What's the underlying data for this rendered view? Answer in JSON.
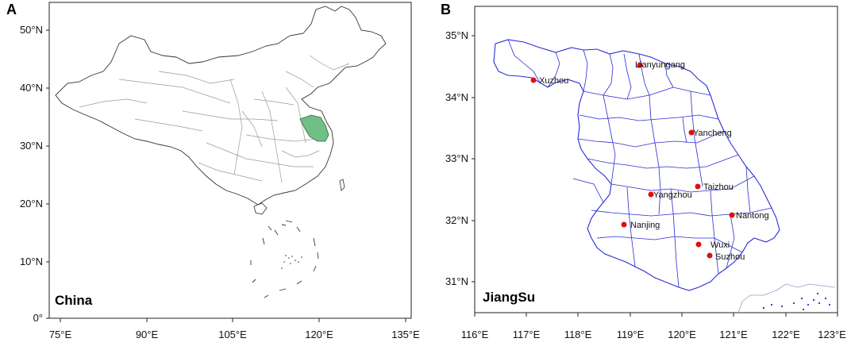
{
  "panel_a": {
    "letter": "A",
    "region_name": "China",
    "lat_labels": [
      "50°N",
      "40°N",
      "30°N",
      "20°N",
      "10°N",
      "0°"
    ],
    "lon_labels": [
      "75°E",
      "90°E",
      "105°E",
      "120°E",
      "135°E"
    ],
    "highlight_color": "#6fbf86"
  },
  "panel_b": {
    "letter": "B",
    "region_name": "JiangSu",
    "lat_labels": [
      "35°N",
      "34°N",
      "33°N",
      "32°N",
      "31°N"
    ],
    "lon_labels": [
      "116°E",
      "117°E",
      "118°E",
      "119°E",
      "120°E",
      "121°E",
      "122°E",
      "123°E"
    ],
    "boundary_color": "#2b2bd6",
    "marker_color": "#e01010",
    "cities": [
      "Xuzhou",
      "Lianyungang",
      "Yancheng",
      "Taizhou",
      "Yangzhou",
      "Nantong",
      "Nanjing",
      "Wuxi",
      "Suzhou"
    ]
  }
}
